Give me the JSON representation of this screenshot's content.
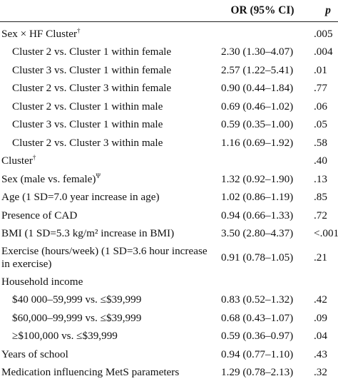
{
  "table": {
    "header": {
      "label": "",
      "or": "OR (95% CI)",
      "p": "p"
    },
    "rows": [
      {
        "label": "Sex × HF Cluster",
        "sup": "†",
        "or": "",
        "p": ".005",
        "indent": false
      },
      {
        "label": "Cluster 2 vs. Cluster 1 within female",
        "sup": "",
        "or": "2.30 (1.30–4.07)",
        "p": ".004",
        "indent": true
      },
      {
        "label": "Cluster 3 vs. Cluster 1 within female",
        "sup": "",
        "or": "2.57 (1.22–5.41)",
        "p": ".01",
        "indent": true
      },
      {
        "label": "Cluster 2 vs. Cluster 3 within female",
        "sup": "",
        "or": "0.90 (0.44–1.84)",
        "p": ".77",
        "indent": true
      },
      {
        "label": "Cluster 2 vs. Cluster 1 within male",
        "sup": "",
        "or": "0.69 (0.46–1.02)",
        "p": ".06",
        "indent": true
      },
      {
        "label": "Cluster 3 vs. Cluster 1 within male",
        "sup": "",
        "or": "0.59 (0.35–1.00)",
        "p": ".05",
        "indent": true
      },
      {
        "label": "Cluster 2 vs. Cluster 3 within male",
        "sup": "",
        "or": "1.16 (0.69–1.92)",
        "p": ".58",
        "indent": true
      },
      {
        "label": "Cluster",
        "sup": "†",
        "or": "",
        "p": ".40",
        "indent": false
      },
      {
        "label": "Sex (male vs. female)",
        "sup": "Ψ",
        "or": "1.32 (0.92–1.90)",
        "p": ".13",
        "indent": false
      },
      {
        "label": "Age (1 SD=7.0 year increase in age)",
        "sup": "",
        "or": "1.02 (0.86–1.19)",
        "p": ".85",
        "indent": false
      },
      {
        "label": "Presence of CAD",
        "sup": "",
        "or": "0.94 (0.66–1.33)",
        "p": ".72",
        "indent": false
      },
      {
        "label": "BMI (1 SD=5.3 kg/m² increase in BMI)",
        "sup": "",
        "or": "3.50 (2.80–4.37)",
        "p": "<.001",
        "indent": false
      },
      {
        "label": "Exercise (hours/week) (1 SD=3.6 hour increase in exercise)",
        "sup": "",
        "or": "0.91 (0.78–1.05)",
        "p": ".21",
        "indent": false,
        "two_line": true
      },
      {
        "label": "Household income",
        "sup": "",
        "or": "",
        "p": "",
        "indent": false
      },
      {
        "label": "$40 000–59,999 vs. ≤$39,999",
        "sup": "",
        "or": "0.83 (0.52–1.32)",
        "p": ".42",
        "indent": true
      },
      {
        "label": "$60,000–99,999 vs. ≤$39,999",
        "sup": "",
        "or": "0.68 (0.43–1.07)",
        "p": ".09",
        "indent": true
      },
      {
        "label": "≥$100,000 vs. ≤$39,999",
        "sup": "",
        "or": "0.59 (0.36–0.97)",
        "p": ".04",
        "indent": true
      },
      {
        "label": "Years of school",
        "sup": "",
        "or": "0.94 (0.77–1.10)",
        "p": ".43",
        "indent": false
      },
      {
        "label": "Medication influencing MetS parameters",
        "sup": "",
        "or": "1.29 (0.78–2.13)",
        "p": ".32",
        "indent": false
      }
    ]
  }
}
